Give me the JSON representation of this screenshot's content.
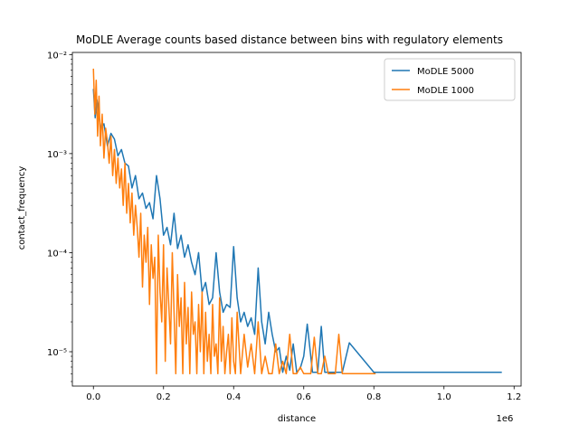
{
  "chart_data": {
    "type": "line",
    "title": "MoDLE Average counts based distance between bins with regulatory elements",
    "xlabel": "distance",
    "ylabel": "contact_frequency",
    "x_offset_label": "1e6",
    "xscale": "linear",
    "yscale": "log",
    "xlim": [
      -0.06,
      1.22
    ],
    "ylim": [
      4.5e-06,
      0.0105
    ],
    "x_ticks": [
      0.0,
      0.2,
      0.4,
      0.6,
      0.8,
      1.0,
      1.2
    ],
    "x_tick_labels": [
      "0.0",
      "0.2",
      "0.4",
      "0.6",
      "0.8",
      "1.0",
      "1.2"
    ],
    "y_ticks": [
      1e-05,
      0.0001,
      0.001,
      0.01
    ],
    "y_tick_labels": [
      "10⁻⁵",
      "10⁻⁴",
      "10⁻³",
      "10⁻²"
    ],
    "legend": {
      "location": "upper right",
      "entries": [
        "MoDLE 5000",
        "MoDLE 1000"
      ]
    },
    "grid": false,
    "series": [
      {
        "name": "MoDLE 5000",
        "color": "#1f77b4",
        "x": [
          0.0,
          0.005,
          0.01,
          0.015,
          0.02,
          0.03,
          0.04,
          0.05,
          0.06,
          0.07,
          0.08,
          0.09,
          0.1,
          0.11,
          0.12,
          0.13,
          0.14,
          0.15,
          0.16,
          0.17,
          0.18,
          0.19,
          0.2,
          0.21,
          0.22,
          0.23,
          0.24,
          0.25,
          0.26,
          0.27,
          0.28,
          0.29,
          0.3,
          0.31,
          0.32,
          0.33,
          0.34,
          0.35,
          0.36,
          0.37,
          0.38,
          0.39,
          0.4,
          0.41,
          0.42,
          0.43,
          0.44,
          0.45,
          0.46,
          0.47,
          0.48,
          0.49,
          0.5,
          0.51,
          0.52,
          0.53,
          0.54,
          0.55,
          0.56,
          0.57,
          0.58,
          0.59,
          0.6,
          0.61,
          0.625,
          0.64,
          0.65,
          0.66,
          0.685,
          0.7,
          0.71,
          0.73,
          0.8,
          0.85,
          1.0,
          1.165
        ],
        "y": [
          0.0045,
          0.0023,
          0.0035,
          0.0026,
          0.0018,
          0.002,
          0.0012,
          0.0016,
          0.0014,
          0.00095,
          0.0011,
          0.0008,
          0.00075,
          0.00045,
          0.0006,
          0.00035,
          0.0004,
          0.00028,
          0.00032,
          0.00022,
          0.0006,
          0.00035,
          0.00015,
          0.00018,
          0.00012,
          0.00025,
          0.00011,
          0.00015,
          9e-05,
          0.00012,
          8e-05,
          6e-05,
          0.0001,
          4e-05,
          5e-05,
          3e-05,
          3.5e-05,
          0.0001,
          4e-05,
          2.5e-05,
          3e-05,
          2.8e-05,
          0.000115,
          3.5e-05,
          2e-05,
          2.5e-05,
          1.8e-05,
          2.2e-05,
          1.5e-05,
          7e-05,
          2e-05,
          1.2e-05,
          2.5e-05,
          1.5e-05,
          1e-05,
          1.1e-05,
          6.2e-06,
          9e-06,
          6.5e-06,
          1.2e-05,
          6.2e-06,
          6.8e-06,
          9e-06,
          1.9e-05,
          6.2e-06,
          6.2e-06,
          1.8e-05,
          6.2e-06,
          6.2e-06,
          6.2e-06,
          6.2e-06,
          1.23e-05,
          6.2e-06,
          6.2e-06,
          6.2e-06,
          6.2e-06
        ]
      },
      {
        "name": "MoDLE 1000",
        "color": "#ff7f0e",
        "x": [
          0.0,
          0.004,
          0.008,
          0.012,
          0.016,
          0.02,
          0.025,
          0.03,
          0.035,
          0.04,
          0.045,
          0.05,
          0.055,
          0.06,
          0.065,
          0.07,
          0.075,
          0.08,
          0.085,
          0.09,
          0.095,
          0.1,
          0.105,
          0.11,
          0.115,
          0.12,
          0.125,
          0.13,
          0.135,
          0.14,
          0.145,
          0.15,
          0.155,
          0.16,
          0.165,
          0.17,
          0.175,
          0.18,
          0.185,
          0.19,
          0.195,
          0.2,
          0.205,
          0.21,
          0.215,
          0.22,
          0.225,
          0.23,
          0.235,
          0.24,
          0.245,
          0.25,
          0.255,
          0.26,
          0.265,
          0.27,
          0.275,
          0.28,
          0.285,
          0.29,
          0.295,
          0.3,
          0.305,
          0.31,
          0.315,
          0.32,
          0.325,
          0.33,
          0.335,
          0.34,
          0.345,
          0.35,
          0.355,
          0.36,
          0.365,
          0.37,
          0.375,
          0.38,
          0.385,
          0.39,
          0.395,
          0.4,
          0.405,
          0.41,
          0.42,
          0.43,
          0.44,
          0.45,
          0.46,
          0.47,
          0.48,
          0.49,
          0.5,
          0.51,
          0.52,
          0.53,
          0.54,
          0.55,
          0.56,
          0.57,
          0.58,
          0.59,
          0.6,
          0.61,
          0.62,
          0.63,
          0.64,
          0.65,
          0.66,
          0.67,
          0.68,
          0.69,
          0.7,
          0.71,
          0.73,
          0.75,
          0.78,
          0.8,
          0.805
        ],
        "y": [
          0.0072,
          0.0025,
          0.0055,
          0.0015,
          0.0038,
          0.0012,
          0.0025,
          0.0009,
          0.0018,
          0.0013,
          0.0008,
          0.0015,
          0.0006,
          0.0011,
          0.0005,
          0.0009,
          0.00045,
          0.0007,
          0.0003,
          0.0008,
          0.00025,
          0.0005,
          0.0002,
          0.0004,
          0.00015,
          0.0003,
          0.00018,
          9e-05,
          0.00025,
          4.5e-05,
          0.00015,
          8e-05,
          0.00018,
          3e-05,
          0.00012,
          5.5e-05,
          9e-05,
          6e-06,
          0.00015,
          4e-05,
          2e-05,
          0.00012,
          8e-06,
          7e-05,
          3e-05,
          1.2e-05,
          0.0001,
          2.5e-05,
          6e-06,
          6e-05,
          1.8e-05,
          3.5e-05,
          6e-06,
          5e-05,
          1.2e-05,
          2.8e-05,
          6e-06,
          4e-05,
          1.5e-05,
          2e-05,
          6e-06,
          3e-05,
          1e-05,
          4e-05,
          6e-06,
          2.5e-05,
          8e-06,
          1.5e-05,
          6e-06,
          3e-05,
          9e-06,
          1.2e-05,
          6e-06,
          3.5e-05,
          8e-06,
          1.8e-05,
          6e-06,
          1e-05,
          1.5e-05,
          6e-06,
          2.2e-05,
          8e-06,
          6e-06,
          2.5e-05,
          6e-06,
          1.5e-05,
          7e-06,
          1.2e-05,
          6e-06,
          2e-05,
          6e-06,
          9e-06,
          6e-06,
          6e-06,
          1.2e-05,
          6e-06,
          8e-06,
          6e-06,
          1.5e-05,
          6e-06,
          6e-06,
          7e-06,
          6e-06,
          6e-06,
          6e-06,
          1.4e-05,
          6e-06,
          6e-06,
          9e-06,
          6e-06,
          6e-06,
          6e-06,
          1.5e-05,
          6e-06,
          6e-06,
          6e-06,
          6e-06,
          6e-06,
          6e-06
        ]
      }
    ]
  }
}
